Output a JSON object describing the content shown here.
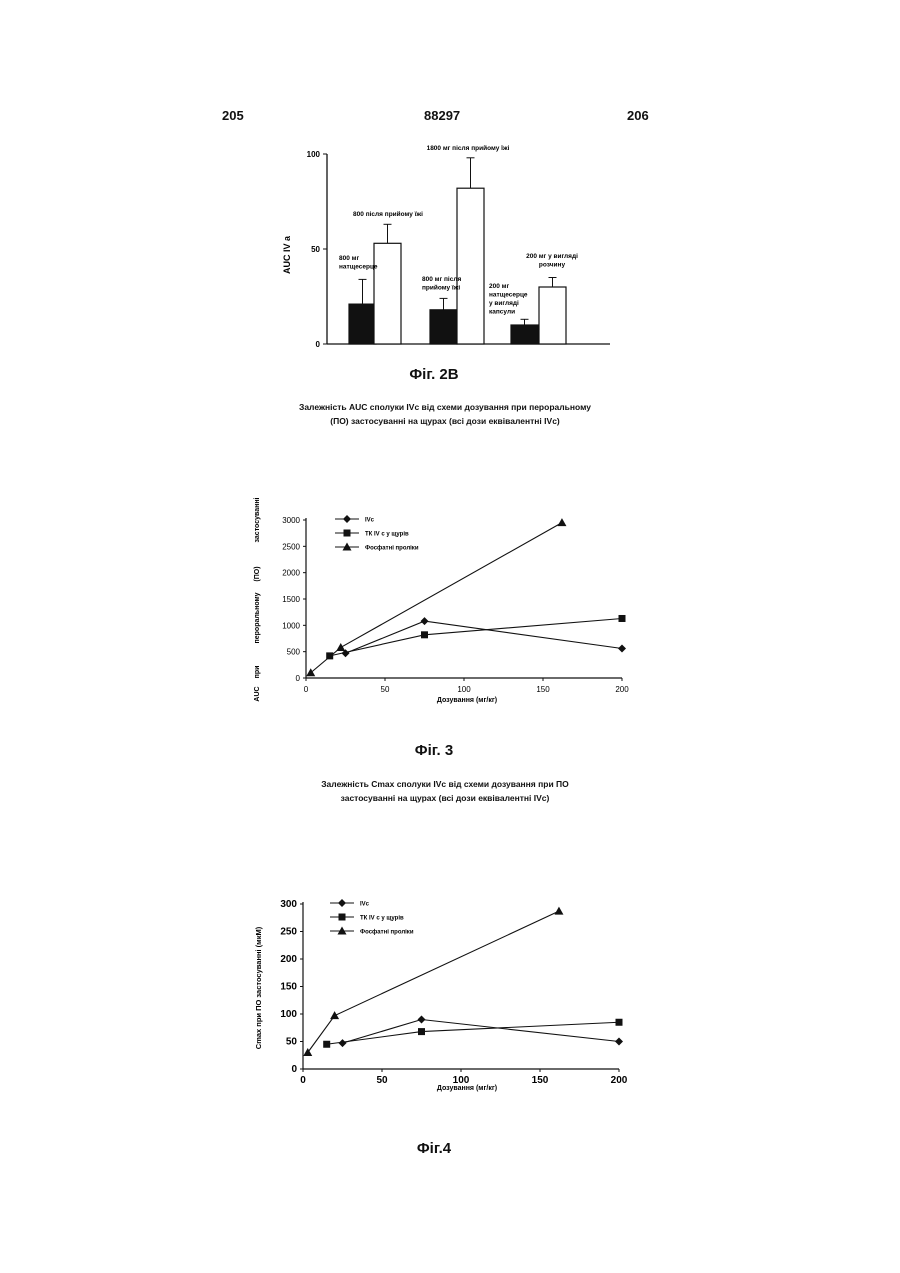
{
  "header": {
    "left_page": "205",
    "center_number": "88297",
    "right_page": "206"
  },
  "fig2b": {
    "caption": "Фіг. 2В",
    "description_line1": "Залежність AUC сполуки IVc від схеми дозування при пероральному",
    "description_line2": "(ПО) застосуванні на щурах (всі дози еквівалентні IVc)",
    "chart_data": {
      "type": "bar",
      "ylabel": "AUC IV a",
      "ylim": [
        0,
        100
      ],
      "yticks": [
        "0",
        "50",
        "100"
      ],
      "bars": [
        {
          "value": 21,
          "error": 13,
          "color": "black"
        },
        {
          "value": 53,
          "error": 10,
          "color": "white"
        },
        {
          "value": 18,
          "error": 6,
          "color": "black"
        },
        {
          "value": 82,
          "error": 16,
          "color": "white"
        },
        {
          "value": 10,
          "error": 3,
          "color": "black"
        },
        {
          "value": 30,
          "error": 5,
          "color": "white"
        }
      ],
      "annotations": [
        {
          "line1": "800 мг",
          "line2": "натщесерце"
        },
        {
          "line1": "800 після прийому їжі"
        },
        {
          "line1": "800 мг після",
          "line2": "прийому їжі"
        },
        {
          "line1": "1800 мг після прийому їжі"
        },
        {
          "line1": "200 мг",
          "line2": "натщесерце",
          "line3": "у вигляді",
          "line4": "капсули"
        },
        {
          "line1": "200 мг у вигляді",
          "line2": "розчину"
        }
      ]
    }
  },
  "fig3": {
    "caption": "Фіг. 3",
    "description_line1": "Залежність Cmax сполуки IVc від схеми дозування при ПО",
    "description_line2": "застосуванні на щурах (всі дози еквівалентні IVc)",
    "chart_data": {
      "type": "line",
      "ylabel_parts": [
        "AUC",
        "при",
        "пероральному",
        "(ПО)",
        "застосуванні"
      ],
      "xlabel": "Дозування (мг/кг)",
      "xlim": [
        0,
        200
      ],
      "ylim": [
        0,
        3000
      ],
      "xticks": [
        "0",
        "50",
        "100",
        "150",
        "200"
      ],
      "yticks": [
        "0",
        "500",
        "1000",
        "1500",
        "2000",
        "2500",
        "3000"
      ],
      "series": [
        {
          "name": "IVc",
          "marker": "diamond",
          "x": [
            25,
            75,
            200
          ],
          "y": [
            470,
            1080,
            560
          ]
        },
        {
          "name": "ТК IV c у щурів",
          "marker": "square",
          "x": [
            15,
            75,
            200
          ],
          "y": [
            420,
            820,
            1130
          ]
        },
        {
          "name": "Фосфатні проліки",
          "marker": "triangle",
          "x": [
            3,
            22,
            162
          ],
          "y": [
            100,
            580,
            2950
          ]
        }
      ]
    }
  },
  "fig4": {
    "caption": "Фіг.4",
    "chart_data": {
      "type": "line",
      "ylabel": "Cmax при ПО застосуванні (мкМ)",
      "xlabel": "Дозування (мг/кг)",
      "xlim": [
        0,
        200
      ],
      "ylim": [
        0,
        300
      ],
      "xticks": [
        "0",
        "50",
        "100",
        "150",
        "200"
      ],
      "yticks": [
        "0",
        "50",
        "100",
        "150",
        "200",
        "250",
        "300"
      ],
      "series": [
        {
          "name": "IVc",
          "marker": "diamond",
          "x": [
            25,
            75,
            200
          ],
          "y": [
            47,
            90,
            50
          ]
        },
        {
          "name": "ТК IV c у щурів",
          "marker": "square",
          "x": [
            15,
            75,
            200
          ],
          "y": [
            45,
            68,
            85
          ]
        },
        {
          "name": "Фосфатні проліки",
          "marker": "triangle",
          "x": [
            3,
            20,
            162
          ],
          "y": [
            30,
            97,
            287
          ]
        }
      ]
    }
  }
}
